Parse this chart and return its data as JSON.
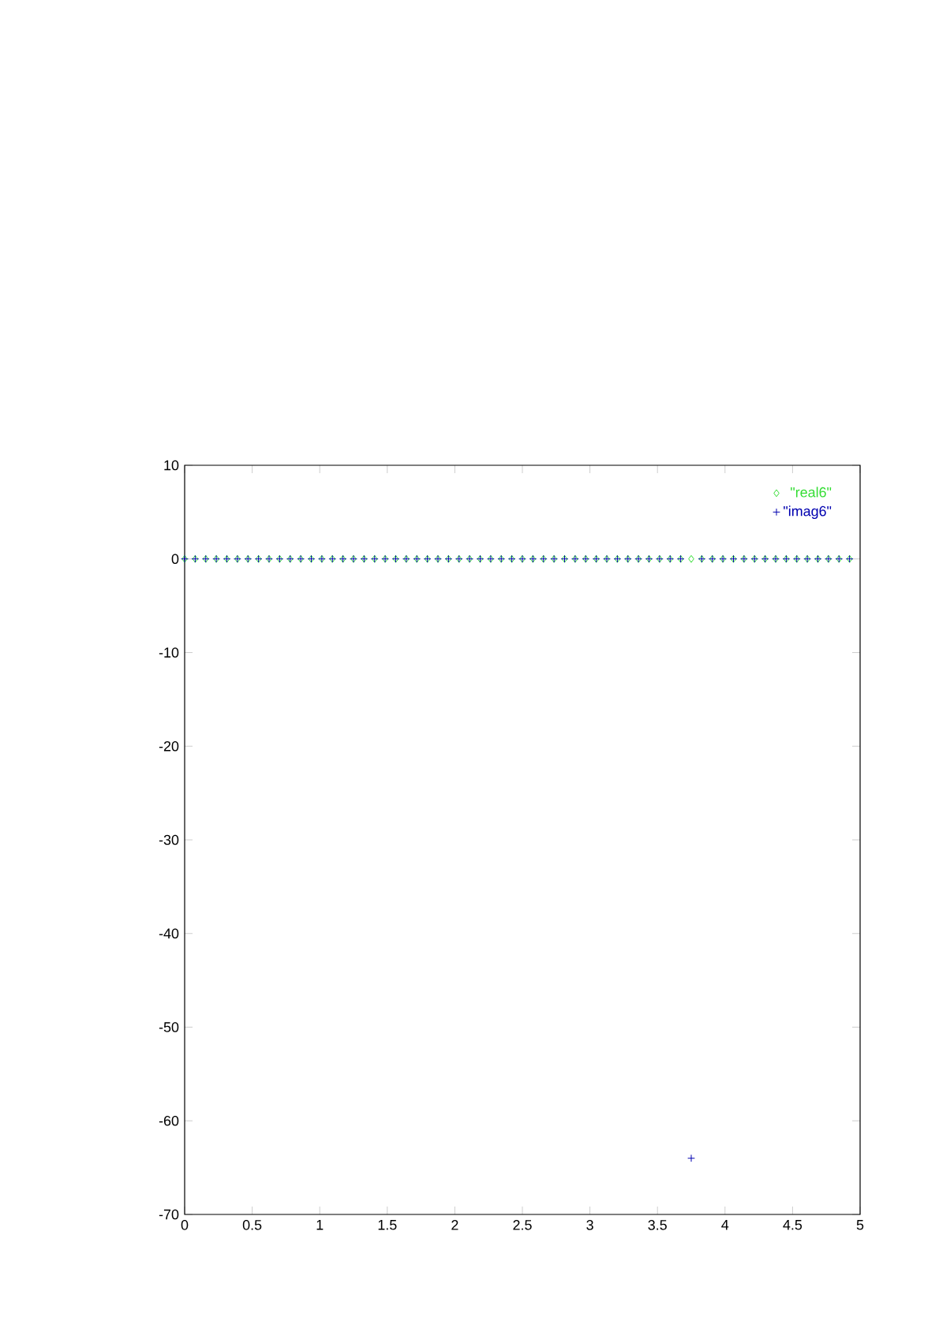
{
  "chart_data": {
    "type": "scatter",
    "x": [
      0,
      0.078125,
      0.15625,
      0.234375,
      0.3125,
      0.390625,
      0.46875,
      0.546875,
      0.625,
      0.703125,
      0.78125,
      0.859375,
      0.9375,
      1.015625,
      1.09375,
      1.171875,
      1.25,
      1.328125,
      1.40625,
      1.484375,
      1.5625,
      1.640625,
      1.71875,
      1.796875,
      1.875,
      1.953125,
      2.03125,
      2.109375,
      2.1875,
      2.265625,
      2.34375,
      2.421875,
      2.5,
      2.578125,
      2.65625,
      2.734375,
      2.8125,
      2.890625,
      2.96875,
      3.046875,
      3.125,
      3.203125,
      3.28125,
      3.359375,
      3.4375,
      3.515625,
      3.59375,
      3.671875,
      3.75,
      3.828125,
      3.90625,
      3.984375,
      4.0625,
      4.140625,
      4.21875,
      4.296875,
      4.375,
      4.453125,
      4.53125,
      4.609375,
      4.6875,
      4.765625,
      4.84375,
      4.921875
    ],
    "series": [
      {
        "name": "\"real6\"",
        "color": "#33dd33",
        "marker": "diamond",
        "values": [
          0,
          0,
          0,
          0,
          0,
          0,
          0,
          0,
          0,
          0,
          0,
          0,
          0,
          0,
          0,
          0,
          0,
          0,
          0,
          0,
          0,
          0,
          0,
          0,
          0,
          0,
          0,
          0,
          0,
          0,
          0,
          0,
          0,
          0,
          0,
          0,
          0,
          0,
          0,
          0,
          0,
          0,
          0,
          0,
          0,
          0,
          0,
          0,
          0,
          0,
          0,
          0,
          0,
          0,
          0,
          0,
          0,
          0,
          0,
          0,
          0,
          0,
          0,
          0
        ]
      },
      {
        "name": "\"imag6\"",
        "color": "#0000b0",
        "marker": "cross",
        "values": [
          0,
          0,
          0,
          0,
          0,
          0,
          0,
          0,
          0,
          0,
          0,
          0,
          0,
          0,
          0,
          0,
          0,
          0,
          0,
          0,
          0,
          0,
          0,
          0,
          0,
          0,
          0,
          0,
          0,
          0,
          0,
          0,
          0,
          0,
          0,
          0,
          0,
          0,
          0,
          0,
          0,
          0,
          0,
          0,
          0,
          0,
          0,
          0,
          -64,
          0,
          0,
          0,
          0,
          0,
          0,
          0,
          0,
          0,
          0,
          0,
          0,
          0,
          0,
          0
        ]
      }
    ],
    "xlim": [
      0,
      5
    ],
    "ylim": [
      -70,
      10
    ],
    "xticks": [
      0,
      0.5,
      1,
      1.5,
      2,
      2.5,
      3,
      3.5,
      4,
      4.5,
      5
    ],
    "yticks": [
      -70,
      -60,
      -50,
      -40,
      -30,
      -20,
      -10,
      0,
      10
    ],
    "legend": "top right"
  }
}
